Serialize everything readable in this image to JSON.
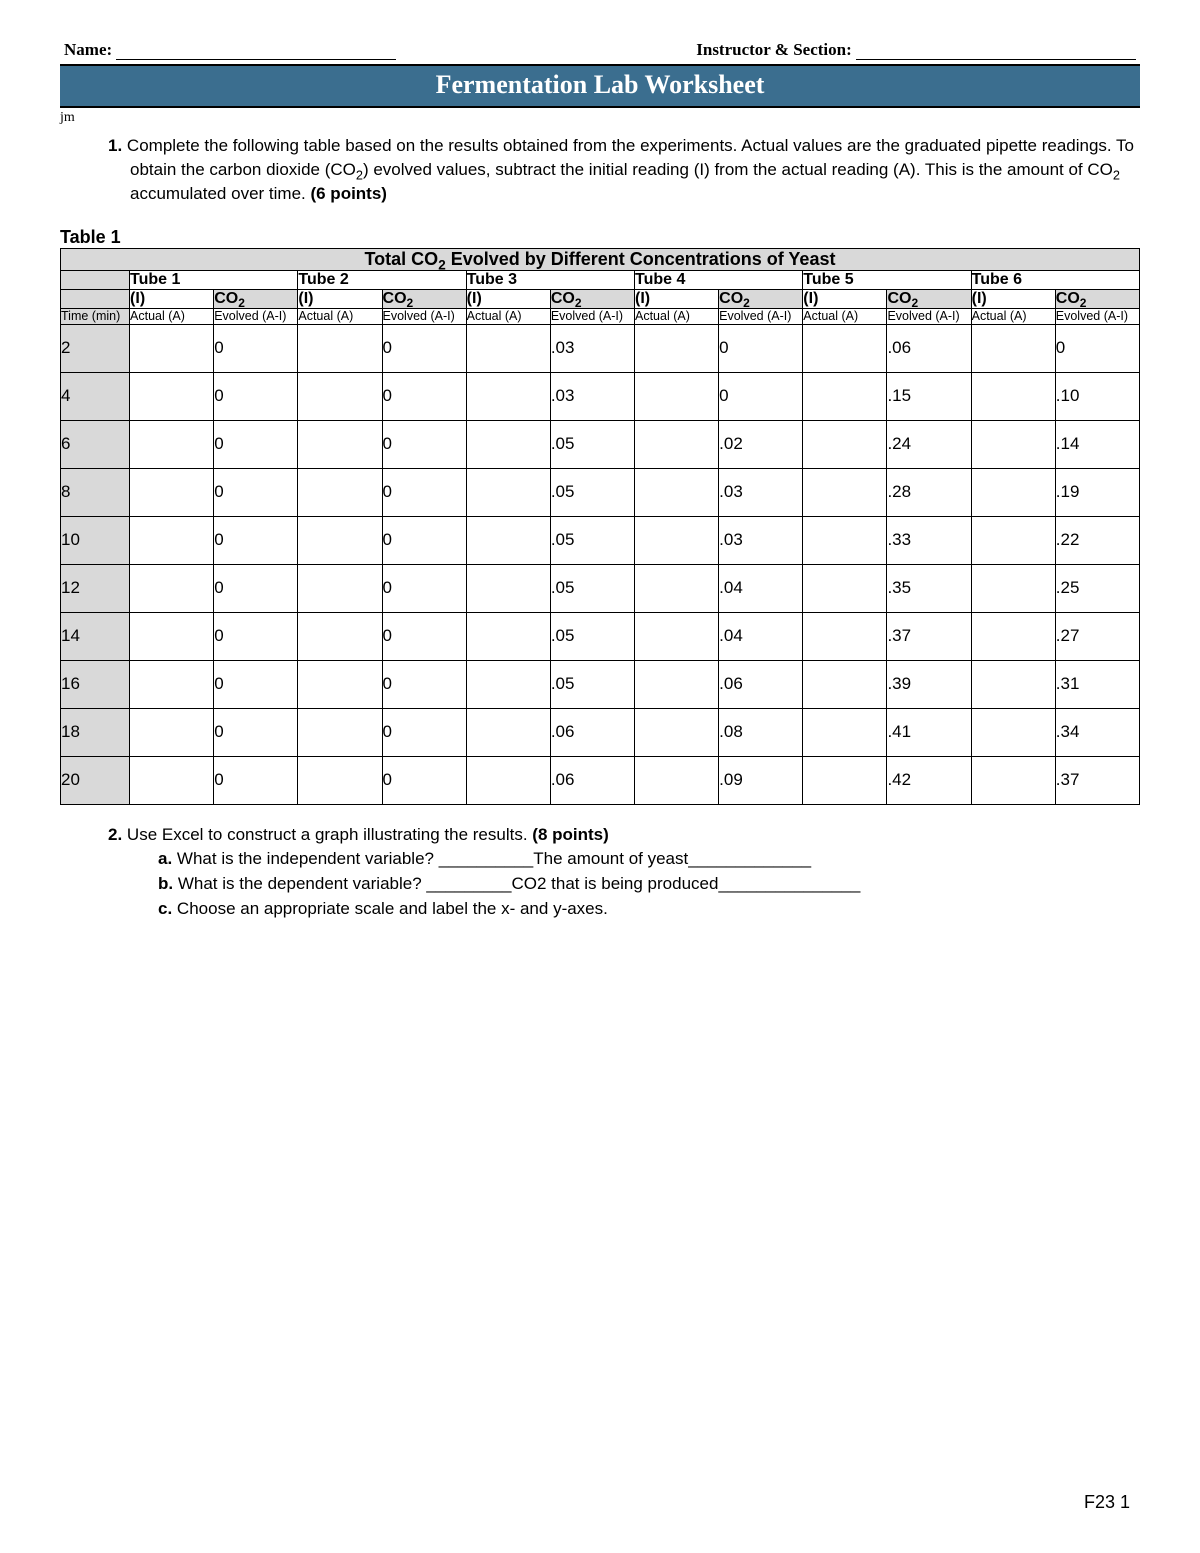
{
  "header": {
    "name_label": "Name:",
    "instructor_label": "Instructor & Section:"
  },
  "title_bar": "Fermentation Lab Worksheet",
  "jm": "jm",
  "q1": {
    "num": "1.",
    "text_a": "Complete the following table based on the results obtained from the experiments. Actual values are the graduated pipette readings. To obtain the carbon dioxide (CO",
    "sub": "2",
    "text_b": ") evolved values, subtract the initial reading (I) from the actual reading (A). This is the amount of CO",
    "sub2": "2",
    "text_c": " accumulated over time.  ",
    "points": "(6 points)"
  },
  "table": {
    "label": "Table 1",
    "title_a": "Total CO",
    "title_sub": "2",
    "title_b": " Evolved by Different Concentrations of Yeast",
    "tubes": [
      "Tube 1",
      "Tube 2",
      "Tube 3",
      "Tube 4",
      "Tube 5",
      "Tube 6"
    ],
    "i_label": "(I)",
    "co2_a": "CO",
    "co2_sub": "2",
    "time_label": "Time (min)",
    "actual_label": "Actual (A)",
    "evolved_label": "Evolved (A-I)",
    "rows": [
      {
        "t": "2",
        "v": [
          "",
          "0",
          "",
          "0",
          "",
          ".03",
          "",
          "0",
          "",
          ".06",
          "",
          "0"
        ]
      },
      {
        "t": "4",
        "v": [
          "",
          "0",
          "",
          "0",
          "",
          ".03",
          "",
          "0",
          "",
          ".15",
          "",
          ".10"
        ]
      },
      {
        "t": "6",
        "v": [
          "",
          "0",
          "",
          "0",
          "",
          ".05",
          "",
          ".02",
          "",
          ".24",
          "",
          ".14"
        ]
      },
      {
        "t": "8",
        "v": [
          "",
          "0",
          "",
          "0",
          "",
          ".05",
          "",
          ".03",
          "",
          ".28",
          "",
          ".19"
        ]
      },
      {
        "t": "10",
        "v": [
          "",
          "0",
          "",
          "0",
          "",
          ".05",
          "",
          ".03",
          "",
          ".33",
          "",
          ".22"
        ]
      },
      {
        "t": "12",
        "v": [
          "",
          "0",
          "",
          "0",
          "",
          ".05",
          "",
          ".04",
          "",
          ".35",
          "",
          ".25"
        ]
      },
      {
        "t": "14",
        "v": [
          "",
          "0",
          "",
          "0",
          "",
          ".05",
          "",
          ".04",
          "",
          ".37",
          "",
          ".27"
        ]
      },
      {
        "t": "16",
        "v": [
          "",
          "0",
          "",
          "0",
          "",
          ".05",
          "",
          ".06",
          "",
          ".39",
          "",
          ".31"
        ]
      },
      {
        "t": "18",
        "v": [
          "",
          "0",
          "",
          "0",
          "",
          ".06",
          "",
          ".08",
          "",
          ".41",
          "",
          ".34"
        ]
      },
      {
        "t": "20",
        "v": [
          "",
          "0",
          "",
          "0",
          "",
          ".06",
          "",
          ".09",
          "",
          ".42",
          "",
          ".37"
        ]
      }
    ]
  },
  "q2": {
    "num": "2.",
    "text": "Use Excel to construct a graph illustrating the results. ",
    "points": "(8 points)",
    "a_lbl": "a.",
    "a_text": "What is the independent variable?   __________The amount of yeast_____________",
    "b_lbl": "b.",
    "b_text": "What is the dependent variable?   _________CO2 that is being produced_______________",
    "c_lbl": "c.",
    "c_text": "Choose an appropriate scale and label the x- and y-axes."
  },
  "footer": "F23 1",
  "colors": {
    "title_bg": "#3b6e8f",
    "shade": "#d9d9d9"
  }
}
